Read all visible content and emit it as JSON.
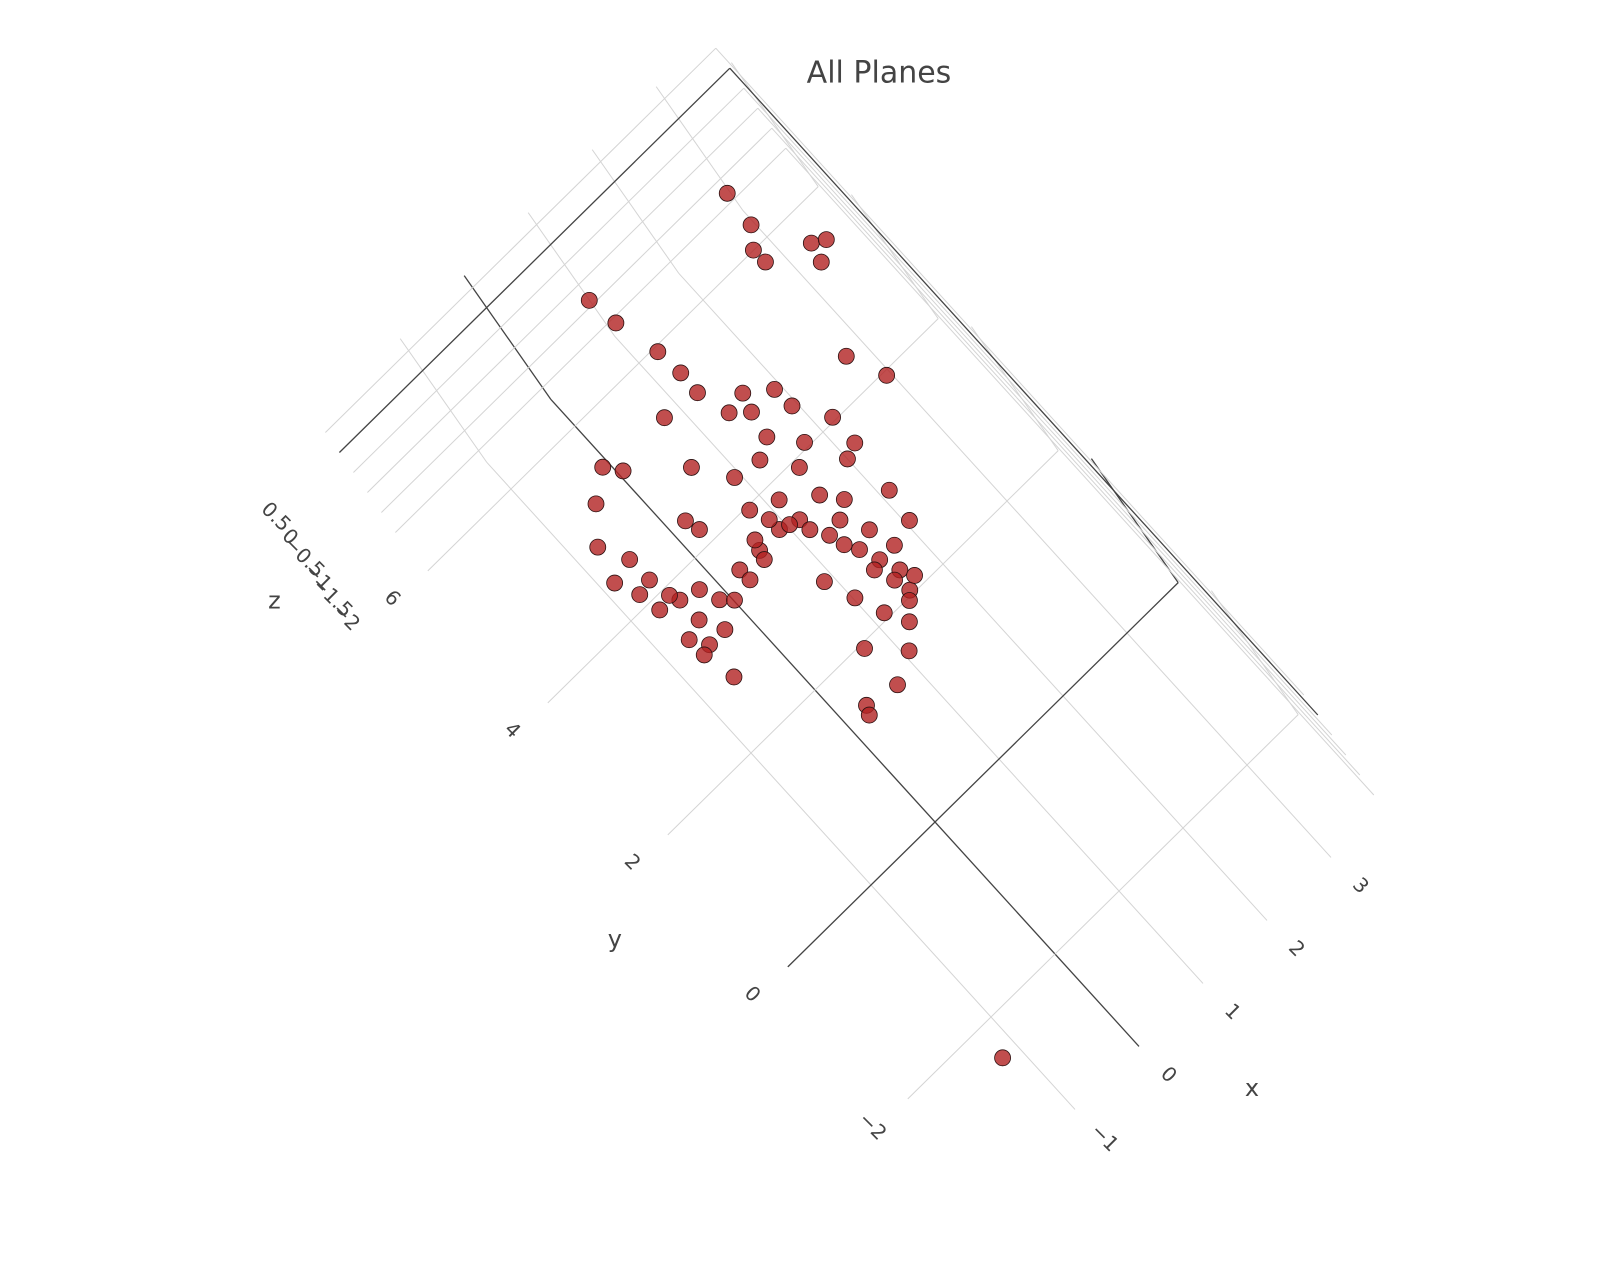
{
  "chart_data": {
    "type": "scatter3d",
    "title": "All Planes",
    "xlabel": "x",
    "ylabel": "y",
    "zlabel": "z",
    "color": "#b22222",
    "grid": true,
    "xlim": [
      -2.3,
      3.8
    ],
    "ylim": [
      -3.4,
      6.4
    ],
    "zlim": [
      -2.3,
      0.8
    ],
    "xticks": [
      {
        "value": -1,
        "label": "−1"
      },
      0,
      1,
      2,
      3
    ],
    "yticks": [
      {
        "value": -2,
        "label": "−2"
      },
      0,
      2,
      4,
      6
    ],
    "zticks": [
      {
        "value": -2,
        "label": "−2"
      },
      {
        "value": -1.5,
        "label": "−1.5"
      },
      {
        "value": -1,
        "label": "−1"
      },
      {
        "value": -0.5,
        "label": "−0.5"
      },
      0,
      0.5
    ],
    "x": [
      2.91,
      2.87,
      2.7,
      2.71,
      3.23,
      3.38,
      3.17,
      0.97,
      1.02,
      1.15,
      1.18,
      1.17,
      2.67,
      2.86,
      1.54,
      1.83,
      1.85,
      0.71,
      1.28,
      1.47,
      1.41,
      2.1,
      1.68,
      2.09,
      -0.17,
      -0.03,
      0.56,
      1.18,
      1.45,
      1.91,
      0.84,
      -0.5,
      -0.81,
      0.11,
      0.16,
      0.72,
      1.04,
      1.41,
      1.58,
      2.02,
      1.96,
      -0.64,
      -0.94,
      -0.63,
      -0.53,
      -0.52,
      -0.62,
      -0.2,
      0.19,
      0.5,
      0.82,
      1.06,
      1.19,
      1.33,
      1.42,
      1.51,
      1.44,
      1.36,
      0.8,
      0.93,
      1.06,
      1.2,
      0.63,
      0.98,
      0.63,
      0.22,
      0.17,
      -0.66,
      -1.3,
      -0.77,
      -0.75,
      -0.74,
      -0.08,
      0.47,
      0.94,
      1.07,
      1.24,
      1.3,
      1.39,
      1.59,
      -0.58,
      -0.29,
      0.2,
      0.54,
      0.81,
      1.39,
      1.56,
      1.65,
      -0.82,
      -0.38
    ],
    "y": [
      5.96,
      5.52,
      5.3,
      5.11,
      4.9,
      4.81,
      4.67,
      6.19,
      5.8,
      5.24,
      4.89,
      4.6,
      3.72,
      3.25,
      4.24,
      4.02,
      3.75,
      4.66,
      4.19,
      4.02,
      3.7,
      3.34,
      3.36,
      2.96,
      4.75,
      4.56,
      4.05,
      3.57,
      3.2,
      2.89,
      3.63,
      4.51,
      4.15,
      3.67,
      3.49,
      3.25,
      3.1,
      2.82,
      2.59,
      2.31,
      1.91,
      3.8,
      3.73,
      3.48,
      3.08,
      2.77,
      2.49,
      2.77,
      2.85,
      2.85,
      2.86,
      2.78,
      2.42,
      2.07,
      1.83,
      1.59,
      1.35,
      1.27,
      2.09,
      1.72,
      1.37,
      1.1,
      1.24,
      0.87,
      0.69,
      0.77,
      0.67,
      2.04,
      -3.12,
      3.16,
      2.69,
      2.45,
      2.65,
      2.74,
      2.82,
      2.62,
      2.23,
      1.79,
      1.55,
      1.43,
      3.2,
      3.01,
      2.69,
      2.97,
      3.02,
      2.46,
      2.15,
      1.83,
      3.44,
      2.49
    ],
    "z": [
      -1,
      -1,
      -1,
      -1,
      -1,
      -1,
      -1,
      -1,
      -1,
      -1,
      -1,
      -1,
      -1,
      -1,
      -1,
      -1,
      -1,
      -1,
      -1,
      -1,
      -1,
      -1,
      -1,
      -1,
      -1,
      -1,
      -1,
      -1,
      -1,
      -1,
      -1,
      -1,
      -1,
      -1,
      -1,
      -1,
      -1,
      -1,
      -1,
      -1,
      -1,
      -1,
      -1,
      -1,
      -1,
      -1,
      -1,
      -1,
      -1,
      -1,
      -1,
      -1,
      -1,
      -1,
      -1,
      -1,
      -1,
      -1,
      -1,
      -1,
      -1,
      -1,
      -1,
      -1,
      -1,
      -1,
      -1,
      -1,
      -1,
      -1,
      -1,
      -1,
      -1,
      -1,
      -1,
      -1,
      -1,
      -1,
      -1,
      -1,
      -1,
      -1,
      -1,
      -1,
      -1,
      -1,
      -1,
      -1,
      -1,
      -1
    ]
  }
}
